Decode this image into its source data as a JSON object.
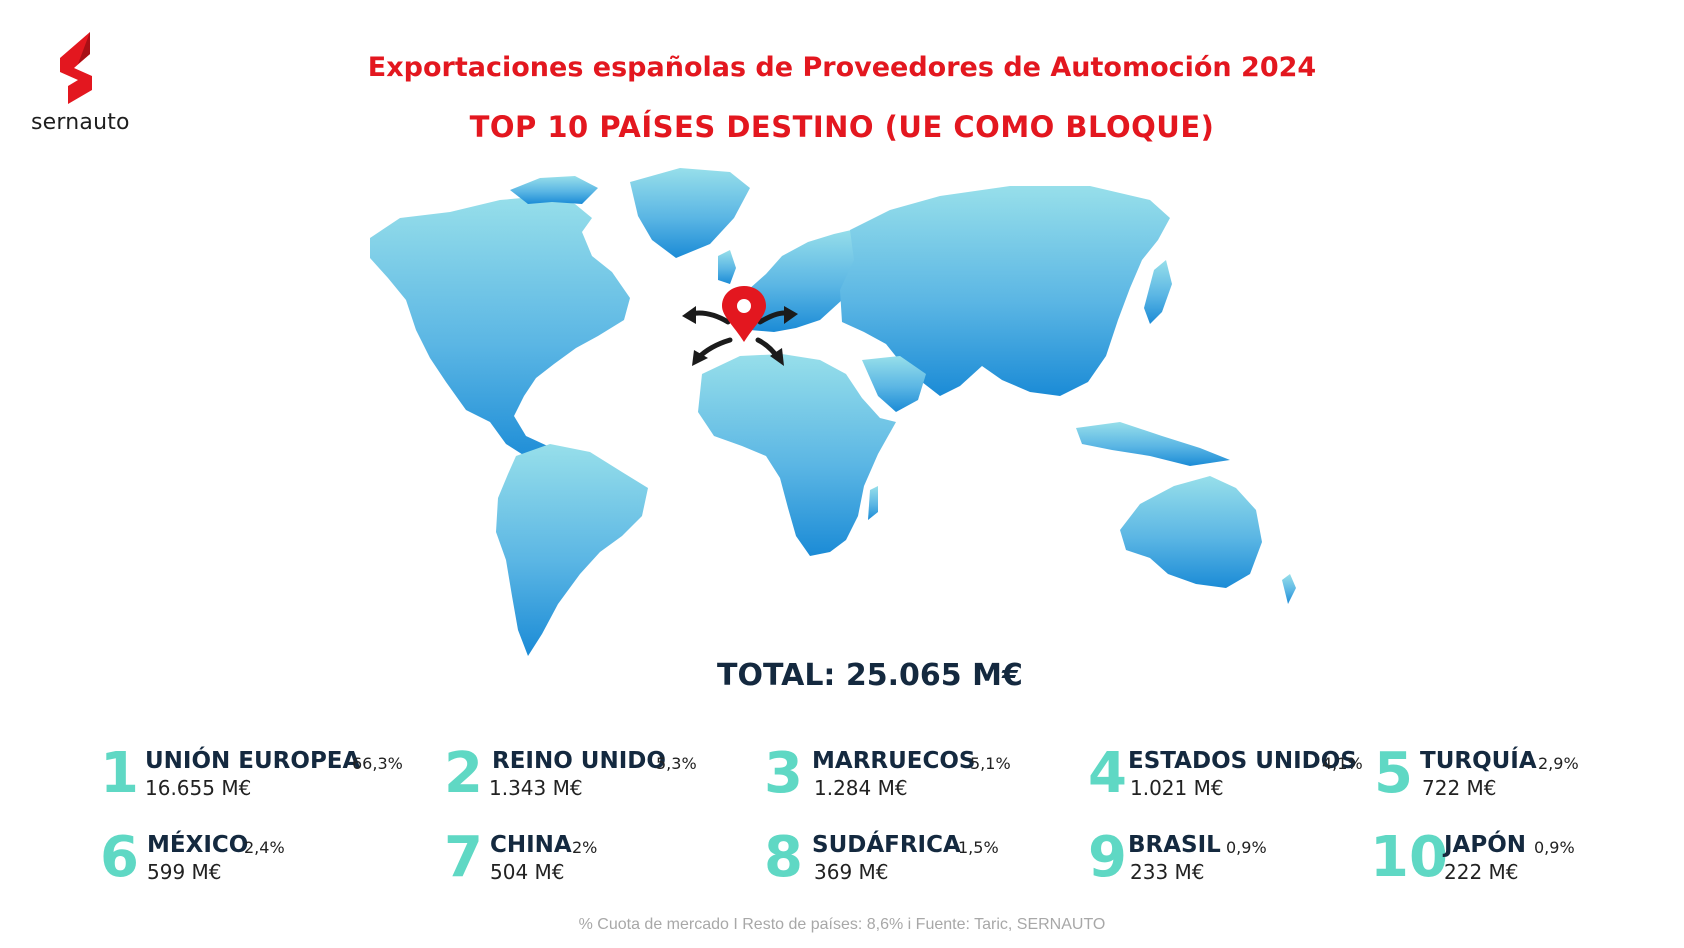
{
  "brand": {
    "name": "sernauto",
    "color": "#e3171f"
  },
  "header": {
    "title": "Exportaciones españolas de Proveedores de Automoción 2024",
    "subtitle": "TOP 10 PAÍSES DESTINO (UE COMO BLOQUE)"
  },
  "map": {
    "marker_icon": "location-pin-icon",
    "marker_color": "#e3171f",
    "arrows": "export-arrows-icon"
  },
  "total": "TOTAL: 25.065 M€",
  "ranking": [
    {
      "rank": "1",
      "name": "UNIÓN EUROPEA",
      "share": "66,3%",
      "value": "16.655 M€"
    },
    {
      "rank": "2",
      "name": "REINO UNIDO",
      "share": "5,3%",
      "value": "1.343 M€"
    },
    {
      "rank": "3",
      "name": "MARRUECOS",
      "share": "5,1%",
      "value": "1.284 M€"
    },
    {
      "rank": "4",
      "name": "ESTADOS UNIDOS",
      "share": "4,1%",
      "value": "1.021 M€"
    },
    {
      "rank": "5",
      "name": "TURQUÍA",
      "share": "2,9%",
      "value": "722 M€"
    },
    {
      "rank": "6",
      "name": "MÉXICO",
      "share": "2,4%",
      "value": "599 M€"
    },
    {
      "rank": "7",
      "name": "CHINA",
      "share": "2%",
      "value": "504 M€"
    },
    {
      "rank": "8",
      "name": "SUDÁFRICA",
      "share": "1,5%",
      "value": "369 M€"
    },
    {
      "rank": "9",
      "name": "BRASIL",
      "share": "0,9%",
      "value": "233 M€"
    },
    {
      "rank": "10",
      "name": "JAPÓN",
      "share": "0,9%",
      "value": "222 M€"
    }
  ],
  "footnote": "% Cuota de mercado I Resto de países: 8,6% i  Fuente: Taric, SERNAUTO",
  "colors": {
    "rank_number": "#5fd8c4",
    "text_dark": "#14293f",
    "map_top": "#8fdbe9",
    "map_bottom": "#1b8fd8"
  }
}
